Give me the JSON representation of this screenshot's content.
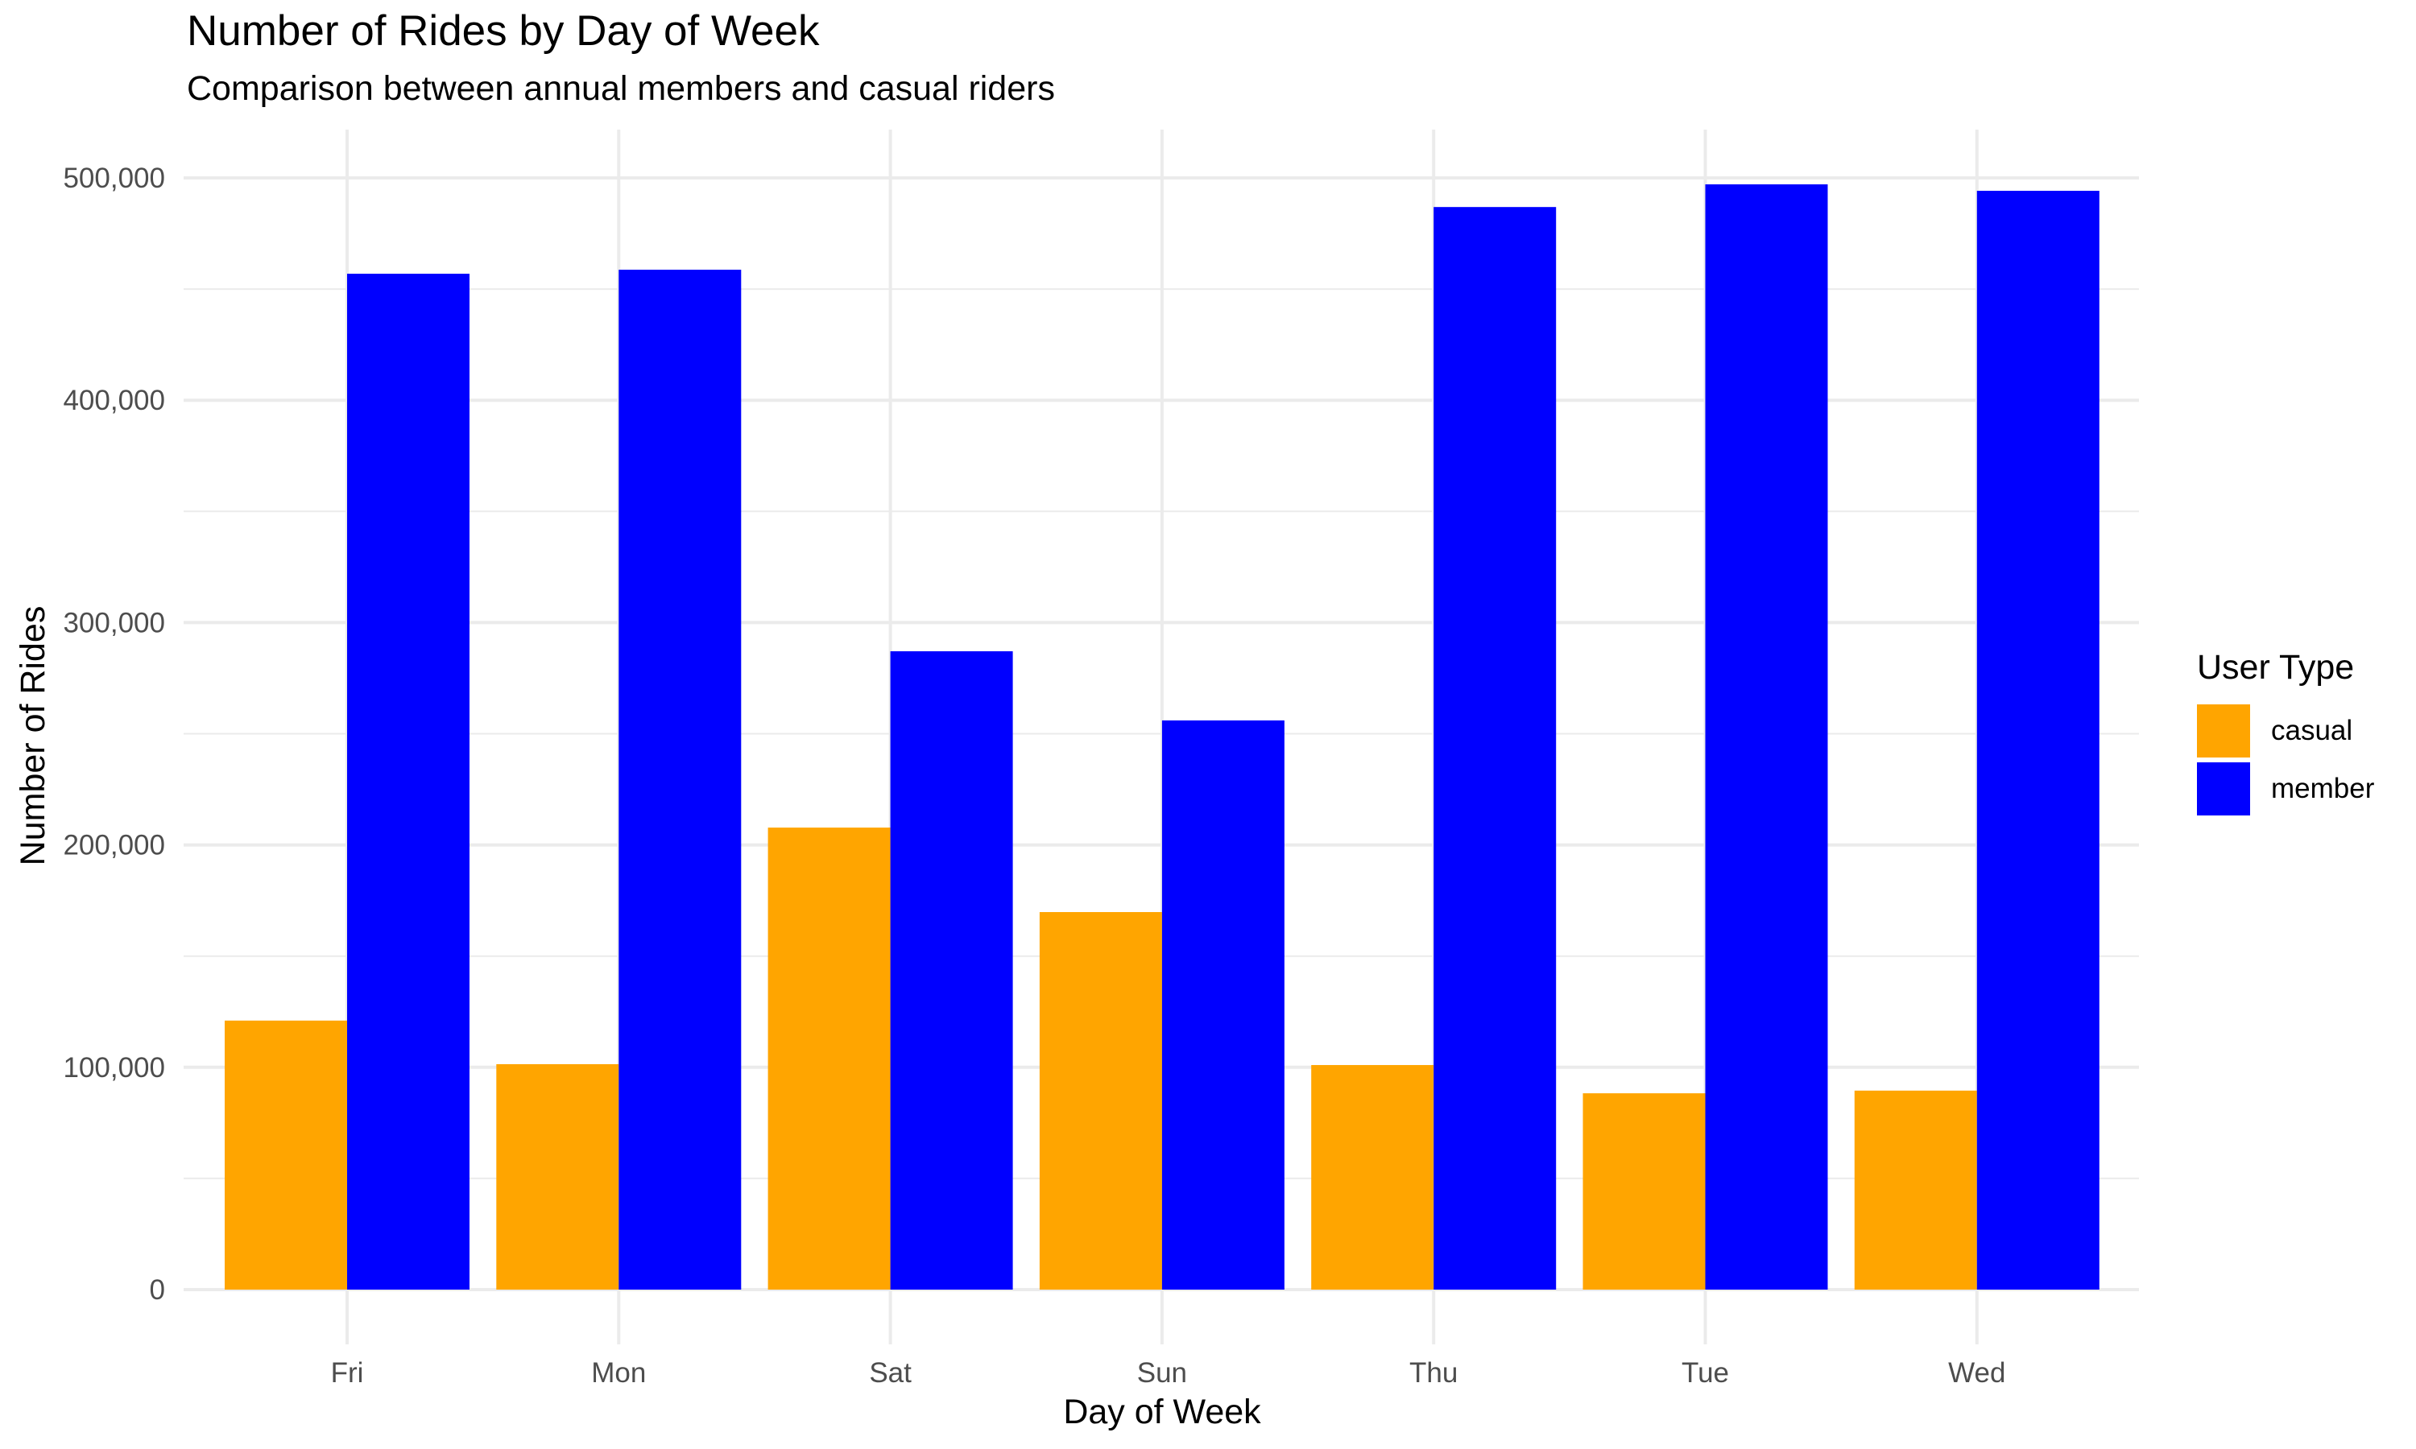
{
  "header": {
    "title": "Number of Rides by Day of Week",
    "subtitle": "Comparison between annual members and casual riders"
  },
  "axes": {
    "x_title": "Day of Week",
    "y_title": "Number of Rides",
    "y_ticks": [
      {
        "value": 0,
        "label": "0"
      },
      {
        "value": 100000,
        "label": "100,000"
      },
      {
        "value": 200000,
        "label": "200,000"
      },
      {
        "value": 300000,
        "label": "300,000"
      },
      {
        "value": 400000,
        "label": "400,000"
      },
      {
        "value": 500000,
        "label": "500,000"
      }
    ]
  },
  "legend": {
    "title": "User Type",
    "items": [
      {
        "label": "casual",
        "color": "#FFA500"
      },
      {
        "label": "member",
        "color": "#0000FF"
      }
    ]
  },
  "colors": {
    "grid": "#EBEBEB",
    "casual": "#FFA500",
    "member": "#0000FF"
  },
  "chart_data": {
    "type": "bar",
    "title": "Number of Rides by Day of Week",
    "subtitle": "Comparison between annual members and casual riders",
    "xlabel": "Day of Week",
    "ylabel": "Number of Rides",
    "categories": [
      "Fri",
      "Mon",
      "Sat",
      "Sun",
      "Thu",
      "Tue",
      "Wed"
    ],
    "series": [
      {
        "name": "casual",
        "color": "#FFA500",
        "values": [
          121000,
          101400,
          207800,
          169800,
          101000,
          88300,
          89500
        ]
      },
      {
        "name": "member",
        "color": "#0000FF",
        "values": [
          456900,
          458700,
          287100,
          256000,
          486900,
          497100,
          494200
        ]
      }
    ],
    "ylim": [
      0,
      500000
    ],
    "y_ticks": [
      0,
      100000,
      200000,
      300000,
      400000,
      500000
    ],
    "grid": true,
    "legend_position": "right",
    "bar_mode": "dodge"
  }
}
